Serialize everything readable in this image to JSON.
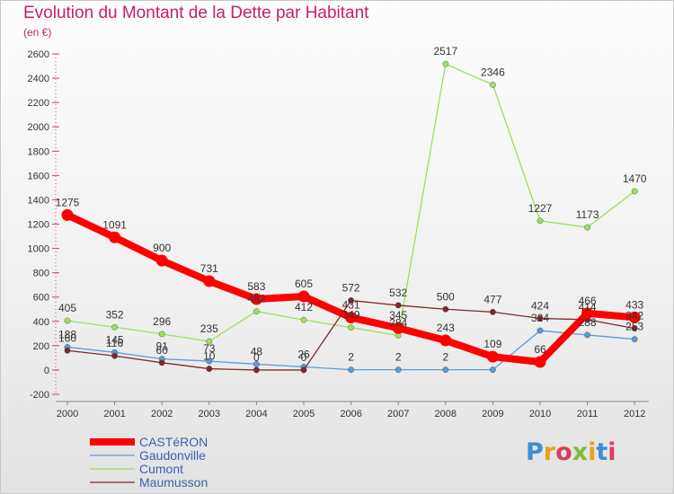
{
  "title": "Evolution du Montant de la Dette par Habitant",
  "unit_label": "(en €)",
  "logo_text": "Proxiti",
  "chart_data": {
    "type": "line",
    "x": [
      "2000",
      "2001",
      "2002",
      "2003",
      "2004",
      "2005",
      "2006",
      "2007",
      "2008",
      "2009",
      "2010",
      "2011",
      "2012"
    ],
    "ylim": [
      -200,
      2600
    ],
    "yticks": [
      -200,
      0,
      200,
      400,
      600,
      800,
      1000,
      1200,
      1400,
      1600,
      1800,
      2000,
      2200,
      2400,
      2600
    ],
    "grid": false,
    "legend_position": "bottom-left",
    "series": [
      {
        "name": "CASTéRON",
        "color": "#ff0000",
        "values": [
          1275,
          1091,
          900,
          731,
          583,
          605,
          431,
          345,
          243,
          109,
          66,
          466,
          433
        ],
        "labels": [
          "1275",
          "1091",
          "900",
          "731",
          "583",
          "605",
          "431",
          "345",
          "243",
          "109",
          "66",
          "466",
          "433"
        ]
      },
      {
        "name": "Gaudonville",
        "color": "#5b9bd5",
        "values": [
          188,
          145,
          91,
          73,
          48,
          26,
          2,
          2,
          2,
          2,
          324,
          288,
          253
        ],
        "labels": [
          "188",
          "145",
          "91",
          "73",
          "48",
          "26",
          "2",
          "2",
          "2",
          "",
          "324",
          "288",
          "253"
        ]
      },
      {
        "name": "Cumont",
        "color": "#99e05f",
        "values": [
          405,
          352,
          296,
          235,
          482,
          412,
          349,
          284,
          2517,
          2346,
          1227,
          1173,
          1470
        ],
        "labels": [
          "405",
          "352",
          "296",
          "235",
          "482",
          "412",
          "349",
          "284",
          "2517",
          "2346",
          "1227",
          "1173",
          "1470"
        ]
      },
      {
        "name": "Maumusson",
        "color": "#7b2a2a",
        "values": [
          160,
          116,
          60,
          10,
          0,
          0,
          572,
          532,
          500,
          477,
          424,
          414,
          342
        ],
        "labels": [
          "160",
          "116",
          "60",
          "10",
          "0",
          "0",
          "572",
          "532",
          "500",
          "477",
          "424",
          "414",
          "342"
        ]
      }
    ]
  }
}
